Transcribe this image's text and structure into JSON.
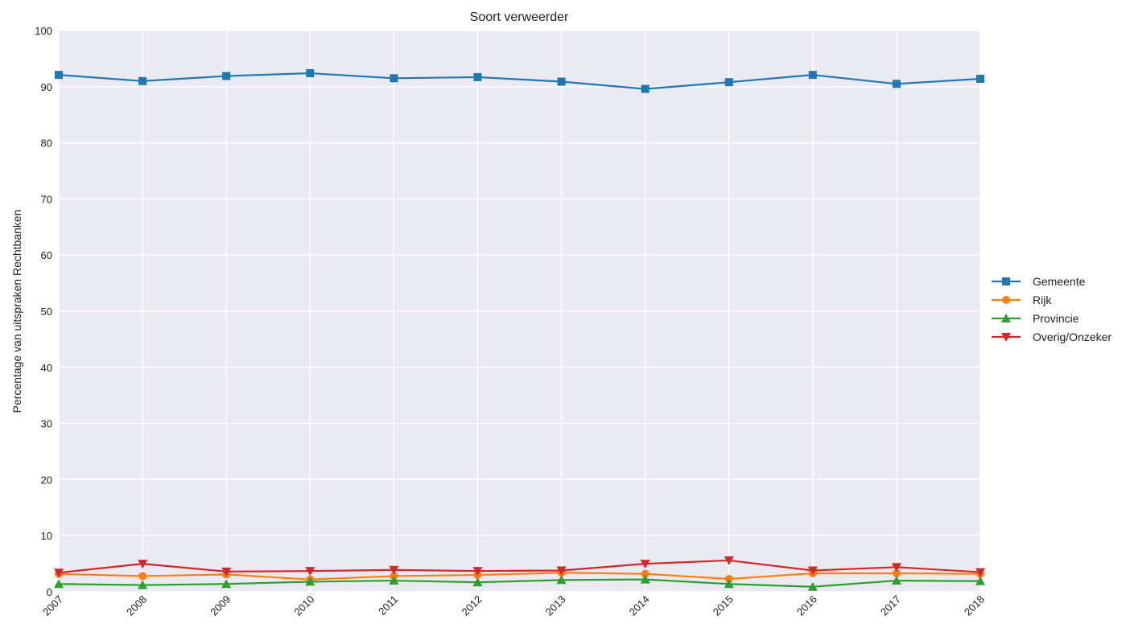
{
  "chart_data": {
    "type": "line",
    "title": "Soort verweerder",
    "xlabel": "",
    "ylabel": "Percentage van uitspraken Rechtbanken",
    "x": [
      "2007",
      "2008",
      "2009",
      "2010",
      "2011",
      "2012",
      "2013",
      "2014",
      "2015",
      "2016",
      "2017",
      "2018"
    ],
    "ylim": [
      0,
      100
    ],
    "yticks": [
      0,
      10,
      20,
      30,
      40,
      50,
      60,
      70,
      80,
      90,
      100
    ],
    "grid": true,
    "legend_position": "right",
    "series": [
      {
        "name": "Gemeente",
        "color": "#1f77b4",
        "marker": "square",
        "values": [
          92.1,
          91.0,
          91.9,
          92.4,
          91.5,
          91.7,
          90.9,
          89.6,
          90.8,
          92.1,
          90.5,
          91.4
        ]
      },
      {
        "name": "Rijk",
        "color": "#ff7f0e",
        "marker": "circle",
        "values": [
          3.2,
          2.8,
          3.1,
          2.2,
          2.8,
          3.0,
          3.4,
          3.2,
          2.3,
          3.3,
          3.3,
          3.2
        ]
      },
      {
        "name": "Provincie",
        "color": "#2ca02c",
        "marker": "triangle-up",
        "values": [
          1.4,
          1.2,
          1.4,
          1.8,
          2.0,
          1.7,
          2.1,
          2.2,
          1.4,
          0.9,
          2.0,
          1.9
        ]
      },
      {
        "name": "Overig/Onzeker",
        "color": "#d62728",
        "marker": "triangle-down",
        "values": [
          3.4,
          5.0,
          3.6,
          3.7,
          3.9,
          3.7,
          3.8,
          5.0,
          5.6,
          3.8,
          4.4,
          3.5
        ]
      }
    ]
  }
}
